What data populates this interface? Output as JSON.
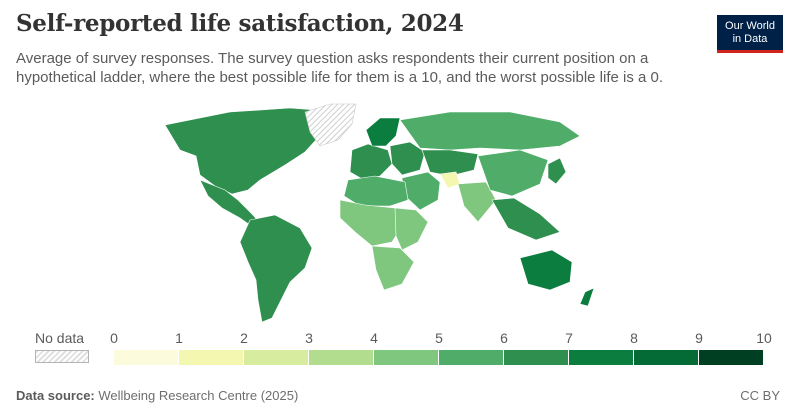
{
  "header": {
    "title": "Self-reported life satisfaction, 2024",
    "subtitle": "Average of survey responses. The survey question asks respondents their current position on a hypothetical ladder, where the best possible life for them is a 10, and the worst possible life is a 0."
  },
  "logo": {
    "line1": "Our World",
    "line2": "in Data"
  },
  "legend": {
    "no_data_label": "No data",
    "ticks": [
      "0",
      "1",
      "2",
      "3",
      "4",
      "5",
      "6",
      "7",
      "8",
      "9",
      "10"
    ],
    "colors": [
      "#fcfcdd",
      "#f4f7b0",
      "#d8ec9f",
      "#b2dd8e",
      "#7fc77f",
      "#4fad69",
      "#2e8f4f",
      "#0a7d3f",
      "#046a36",
      "#003f22"
    ]
  },
  "footer": {
    "source_label": "Data source:",
    "source_text": "Wellbeing Research Centre (2025)",
    "license": "CC BY"
  },
  "chart_data": {
    "type": "choropleth",
    "title": "Self-reported life satisfaction, 2024",
    "scale": {
      "min": 0,
      "max": 10,
      "bins": [
        0,
        1,
        2,
        3,
        4,
        5,
        6,
        7,
        8,
        9,
        10
      ]
    },
    "regions": [
      {
        "name": "North America",
        "value": 6.7
      },
      {
        "name": "Greenland",
        "value": null
      },
      {
        "name": "Mexico & Central America",
        "value": 6.4
      },
      {
        "name": "South America",
        "value": 6.1
      },
      {
        "name": "Western Europe",
        "value": 6.8
      },
      {
        "name": "Nordic countries",
        "value": 7.4
      },
      {
        "name": "Eastern Europe",
        "value": 6.2
      },
      {
        "name": "Russia",
        "value": 5.8
      },
      {
        "name": "Central Asia",
        "value": 6.0
      },
      {
        "name": "Middle East",
        "value": 5.5
      },
      {
        "name": "Afghanistan",
        "value": 1.4
      },
      {
        "name": "North Africa",
        "value": 5.2
      },
      {
        "name": "West & Central Africa",
        "value": 4.6
      },
      {
        "name": "East Africa",
        "value": 4.0
      },
      {
        "name": "Southern Africa",
        "value": 4.3
      },
      {
        "name": "South Asia",
        "value": 4.5
      },
      {
        "name": "China & Mongolia",
        "value": 5.9
      },
      {
        "name": "Southeast Asia",
        "value": 6.0
      },
      {
        "name": "Japan & Korea",
        "value": 6.1
      },
      {
        "name": "Australia & New Zealand",
        "value": 7.0
      }
    ]
  }
}
